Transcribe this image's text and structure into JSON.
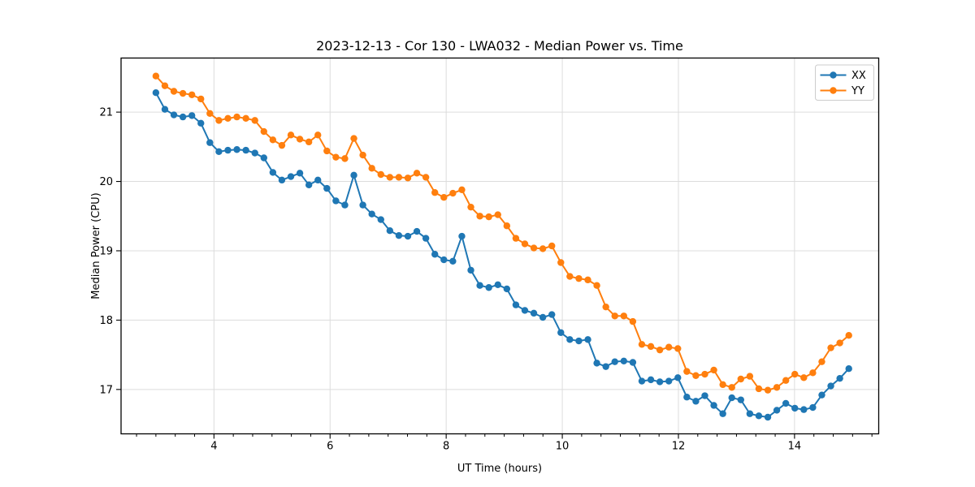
{
  "figure": {
    "background": "#ffffff"
  },
  "chart_data": {
    "type": "line",
    "title": "2023-12-13 - Cor 130 - LWA032 - Median Power vs. Time",
    "xlabel": "UT Time (hours)",
    "ylabel": "Median Power (CPU)",
    "xlim": [
      2.4,
      15.45
    ],
    "ylim": [
      16.36,
      21.78
    ],
    "xticks": [
      4,
      6,
      8,
      10,
      12,
      14
    ],
    "yticks": [
      17,
      18,
      19,
      20,
      21
    ],
    "x_minor_tick_step": 0.33333,
    "grid": true,
    "legend_position": "upper right",
    "marker": "o",
    "colors": {
      "xx": "#1f77b4",
      "yy": "#ff7f0e",
      "grid": "#dcdcdc",
      "spine": "#000000",
      "legend_border": "#cccccc"
    },
    "x": [
      3.0,
      3.155,
      3.31,
      3.465,
      3.62,
      3.775,
      3.93,
      4.085,
      4.24,
      4.395,
      4.55,
      4.705,
      4.86,
      5.015,
      5.17,
      5.325,
      5.48,
      5.635,
      5.79,
      5.945,
      6.1,
      6.255,
      6.41,
      6.565,
      6.72,
      6.875,
      7.03,
      7.185,
      7.34,
      7.495,
      7.65,
      7.805,
      7.96,
      8.115,
      8.27,
      8.425,
      8.58,
      8.735,
      8.89,
      9.045,
      9.2,
      9.355,
      9.51,
      9.665,
      9.82,
      9.975,
      10.13,
      10.285,
      10.44,
      10.595,
      10.75,
      10.905,
      11.06,
      11.215,
      11.37,
      11.525,
      11.68,
      11.835,
      11.99,
      12.145,
      12.3,
      12.455,
      12.61,
      12.765,
      12.92,
      13.075,
      13.23,
      13.385,
      13.54,
      13.695,
      13.85,
      14.005,
      14.16,
      14.315,
      14.47,
      14.625,
      14.78,
      14.935
    ],
    "series": [
      {
        "name": "XX",
        "color": "#1f77b4",
        "values": [
          21.28,
          21.04,
          20.96,
          20.93,
          20.95,
          20.84,
          20.56,
          20.43,
          20.45,
          20.46,
          20.45,
          20.41,
          20.34,
          20.13,
          20.02,
          20.07,
          20.12,
          19.95,
          20.02,
          19.9,
          19.72,
          19.66,
          20.09,
          19.66,
          19.53,
          19.45,
          19.29,
          19.22,
          19.21,
          19.28,
          19.18,
          18.95,
          18.87,
          18.85,
          19.21,
          18.72,
          18.5,
          18.47,
          18.51,
          18.45,
          18.22,
          18.14,
          18.1,
          18.04,
          18.08,
          17.82,
          17.72,
          17.7,
          17.72,
          17.38,
          17.33,
          17.4,
          17.41,
          17.39,
          17.12,
          17.14,
          17.11,
          17.12,
          17.17,
          16.89,
          16.83,
          16.91,
          16.77,
          16.65,
          16.88,
          16.85,
          16.65,
          16.62,
          16.6,
          16.7,
          16.8,
          16.73,
          16.71,
          16.74,
          16.92,
          17.05,
          17.16,
          17.3
        ]
      },
      {
        "name": "YY",
        "color": "#ff7f0e",
        "values": [
          21.52,
          21.38,
          21.3,
          21.27,
          21.25,
          21.19,
          20.98,
          20.88,
          20.91,
          20.93,
          20.91,
          20.88,
          20.72,
          20.6,
          20.52,
          20.67,
          20.61,
          20.57,
          20.67,
          20.44,
          20.35,
          20.33,
          20.62,
          20.38,
          20.19,
          20.1,
          20.06,
          20.06,
          20.05,
          20.12,
          20.06,
          19.84,
          19.77,
          19.83,
          19.88,
          19.63,
          19.5,
          19.49,
          19.52,
          19.36,
          19.18,
          19.1,
          19.04,
          19.03,
          19.07,
          18.83,
          18.63,
          18.6,
          18.58,
          18.5,
          18.19,
          18.06,
          18.06,
          17.98,
          17.65,
          17.62,
          17.57,
          17.61,
          17.59,
          17.26,
          17.2,
          17.22,
          17.28,
          17.07,
          17.03,
          17.15,
          17.19,
          17.01,
          16.99,
          17.03,
          17.13,
          17.22,
          17.17,
          17.24,
          17.4,
          17.6,
          17.67,
          17.78
        ]
      }
    ]
  }
}
